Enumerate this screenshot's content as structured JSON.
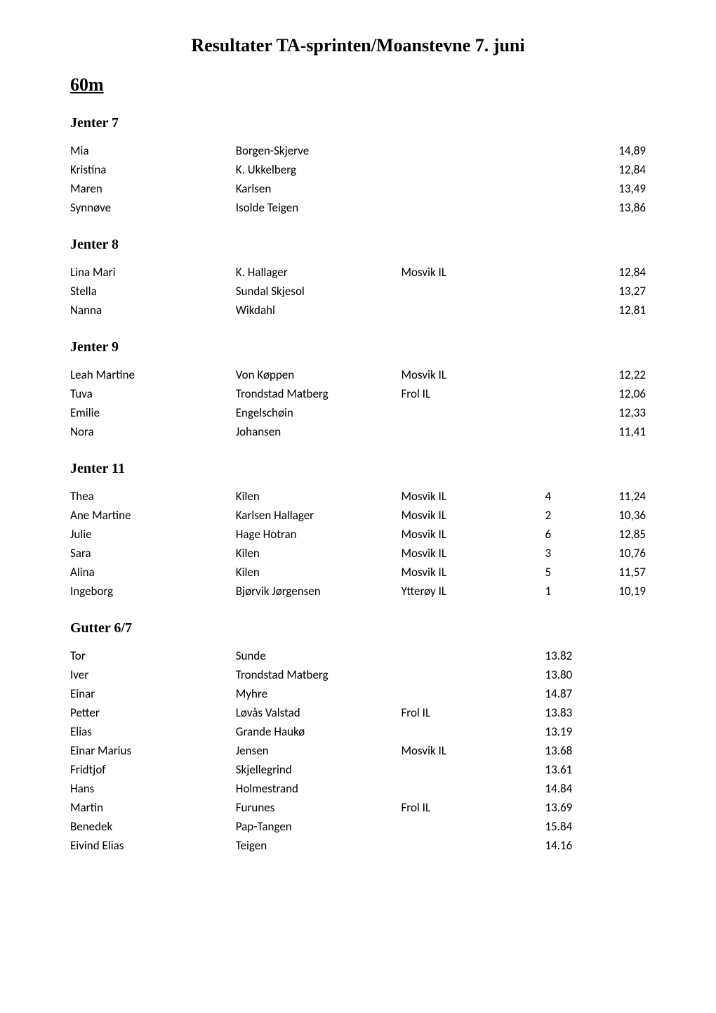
{
  "document": {
    "title": "Resultater TA-sprinten/Moanstevne 7. juni",
    "event_heading": "60m",
    "groups": [
      {
        "heading": "Jenter 7",
        "layout": "four",
        "rows": [
          {
            "first": "Mia",
            "surname": "Borgen-Skjerve",
            "club": "",
            "time": "14,89"
          },
          {
            "first": "Kristina",
            "surname": "K. Ukkelberg",
            "club": "",
            "time": "12,84"
          },
          {
            "first": "Maren",
            "surname": "Karlsen",
            "club": "",
            "time": "13,49"
          },
          {
            "first": "Synnøve",
            "surname": "Isolde Teigen",
            "club": "",
            "time": "13,86"
          }
        ]
      },
      {
        "heading": "Jenter 8",
        "layout": "four",
        "rows": [
          {
            "first": "Lina Mari",
            "surname": "K. Hallager",
            "club": "Mosvik IL",
            "time": "12,84"
          },
          {
            "first": "Stella",
            "surname": "Sundal Skjesol",
            "club": "",
            "time": "13,27"
          },
          {
            "first": "Nanna",
            "surname": "Wikdahl",
            "club": "",
            "time": "12,81"
          }
        ]
      },
      {
        "heading": "Jenter 9",
        "layout": "four",
        "rows": [
          {
            "first": "Leah Martine",
            "surname": "Von Køppen",
            "club": "Mosvik IL",
            "time": "12,22"
          },
          {
            "first": "Tuva",
            "surname": "Trondstad Matberg",
            "club": "Frol IL",
            "time": "12,06"
          },
          {
            "first": "Emilie",
            "surname": "Engelschøin",
            "club": "",
            "time": "12,33"
          },
          {
            "first": "Nora",
            "surname": "Johansen",
            "club": "",
            "time": "11,41"
          }
        ]
      },
      {
        "heading": "Jenter 11",
        "layout": "five",
        "rows": [
          {
            "first": "Thea",
            "surname": "Kilen",
            "club": "Mosvik IL",
            "place": "4",
            "time": "11,24"
          },
          {
            "first": "Ane Martine",
            "surname": "Karlsen Hallager",
            "club": "Mosvik IL",
            "place": "2",
            "time": "10,36"
          },
          {
            "first": "Julie",
            "surname": "Hage Hotran",
            "club": "Mosvik IL",
            "place": "6",
            "time": "12,85"
          },
          {
            "first": "Sara",
            "surname": "Kilen",
            "club": "Mosvik IL",
            "place": "3",
            "time": "10,76"
          },
          {
            "first": "Alina",
            "surname": "Kilen",
            "club": "Mosvik IL",
            "place": "5",
            "time": "11,57"
          },
          {
            "first": "Ingeborg",
            "surname": "Bjørvik Jørgensen",
            "club": "Ytterøy IL",
            "place": "1",
            "time": "10,19"
          }
        ]
      },
      {
        "heading": "Gutter 6/7",
        "layout": "gutter",
        "rows": [
          {
            "first": "Tor",
            "surname": "Sunde",
            "club": "",
            "time": "13.82"
          },
          {
            "first": "Iver",
            "surname": "Trondstad Matberg",
            "club": "",
            "time": "13.80"
          },
          {
            "first": "Einar",
            "surname": "Myhre",
            "club": "",
            "time": "14.87"
          },
          {
            "first": "Petter",
            "surname": "Løvås Valstad",
            "club": "Frol IL",
            "time": "13.83"
          },
          {
            "first": "Elias",
            "surname": "Grande Haukø",
            "club": "",
            "time": "13.19"
          },
          {
            "first": "Einar Marius",
            "surname": "Jensen",
            "club": "Mosvik IL",
            "time": "13.68"
          },
          {
            "first": "Fridtjof",
            "surname": "Skjellegrind",
            "club": "",
            "time": "13.61"
          },
          {
            "first": "Hans",
            "surname": "Holmestrand",
            "club": "",
            "time": "14.84"
          },
          {
            "first": "Martin",
            "surname": "Furunes",
            "club": "Frol IL",
            "time": "13.69"
          },
          {
            "first": "Benedek",
            "surname": "Pap-Tangen",
            "club": "",
            "time": "15.84"
          },
          {
            "first": "Eivind Elias",
            "surname": "Teigen",
            "club": "",
            "time": "14.16"
          }
        ]
      }
    ]
  }
}
